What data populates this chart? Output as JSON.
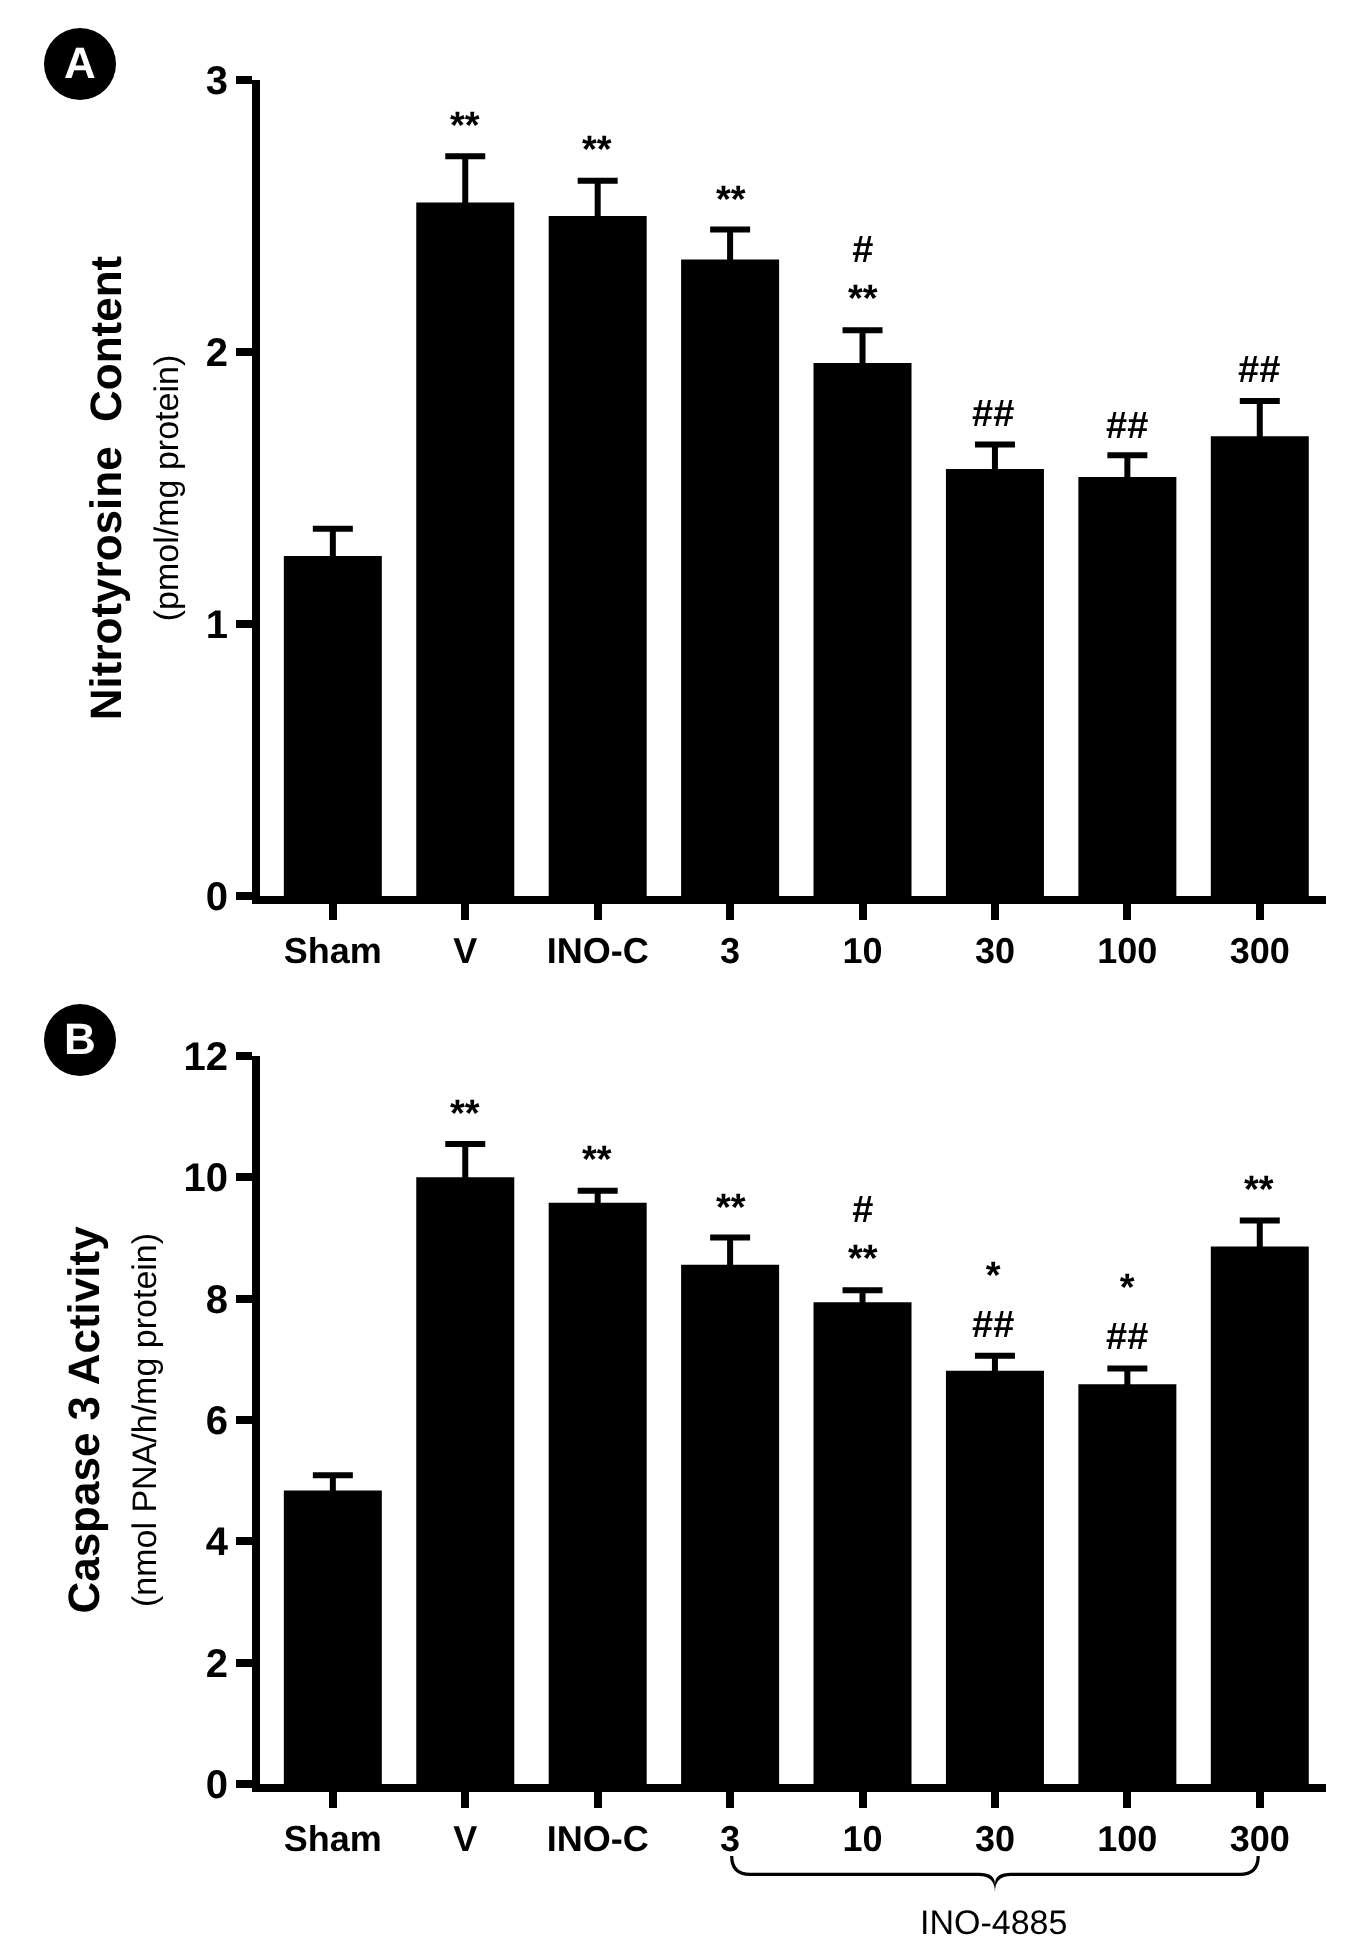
{
  "chart_data": [
    {
      "type": "bar",
      "title": "A",
      "ylabel": "Nitrotyrosine  Content\n(pmol/mg protein)",
      "categories": [
        "Sham",
        "V",
        "INO-C",
        "3",
        "10",
        "30",
        "100",
        "300"
      ],
      "values": [
        1.25,
        2.55,
        2.5,
        2.34,
        1.96,
        1.57,
        1.54,
        1.69
      ],
      "color": "#000000",
      "errors": [
        0.1,
        0.17,
        0.13,
        0.11,
        0.12,
        0.09,
        0.08,
        0.13
      ],
      "ylim": [
        0,
        3
      ],
      "yticks": [
        0,
        1,
        2,
        3
      ],
      "grid": false,
      "annotations": [
        {
          "text": "**",
          "x": "V",
          "y": 2.72
        },
        {
          "text": "**",
          "x": "INO-C",
          "y": 2.63
        },
        {
          "text": "**",
          "x": "3",
          "y": 2.45
        },
        {
          "text": "#\n**",
          "x": "10",
          "y": 2.08
        },
        {
          "text": "##",
          "x": "30",
          "y": 1.66
        },
        {
          "text": "##",
          "x": "100",
          "y": 1.62
        },
        {
          "text": "##",
          "x": "300",
          "y": 1.82
        }
      ]
    },
    {
      "type": "bar",
      "title": "B",
      "ylabel": "Caspase 3 Activity\n(nmol PNA/h/mg protein)",
      "categories": [
        "Sham",
        "V",
        "INO-C",
        "3",
        "10",
        "30",
        "100",
        "300"
      ],
      "values": [
        4.84,
        10.0,
        9.58,
        8.56,
        7.94,
        6.81,
        6.59,
        8.86
      ],
      "color": "#000000",
      "errors": [
        0.25,
        0.55,
        0.2,
        0.45,
        0.2,
        0.25,
        0.26,
        0.43
      ],
      "ylim": [
        0,
        12
      ],
      "yticks": [
        0,
        2,
        4,
        6,
        8,
        10,
        12
      ],
      "grid": false,
      "annotations": [
        {
          "text": "**",
          "x": "V",
          "y": 10.55
        },
        {
          "text": "**",
          "x": "INO-C",
          "y": 9.78
        },
        {
          "text": "**",
          "x": "3",
          "y": 9.0
        },
        {
          "text": "#\n**",
          "x": "10",
          "y": 8.15
        },
        {
          "text": "*\n##",
          "x": "30",
          "y": 7.06
        },
        {
          "text": "*\n##",
          "x": "100",
          "y": 6.85
        },
        {
          "text": "**",
          "x": "300",
          "y": 9.29
        },
        "INO-4885"
      ]
    }
  ]
}
